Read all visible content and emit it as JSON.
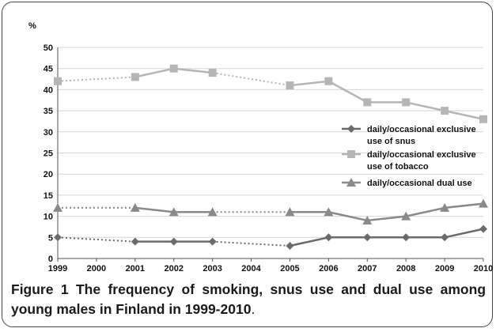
{
  "chart_data": {
    "type": "line",
    "ylabel": "%",
    "ylim": [
      0,
      50
    ],
    "yticks": [
      0,
      5,
      10,
      15,
      20,
      25,
      30,
      35,
      40,
      45,
      50
    ],
    "x_tick_labels": [
      "1999",
      "2000",
      "2001",
      "2002",
      "2003",
      "2004",
      "2005",
      "2006",
      "2007",
      "2008",
      "2009",
      "2010"
    ],
    "grid": "horizontal",
    "legend_position": "right",
    "note": "",
    "series": [
      {
        "name_lines": [
          "daily/occasional exclusive",
          "use of snus"
        ],
        "marker": "diamond",
        "color": "#6b6b6b",
        "x": [
          "1999",
          "2001",
          "2002",
          "2003",
          "2005",
          "2006",
          "2007",
          "2008",
          "2009",
          "2010"
        ],
        "y": [
          5,
          4,
          4,
          4,
          3,
          5,
          5,
          5,
          5,
          7
        ]
      },
      {
        "name_lines": [
          "daily/occasional exclusive",
          "use of tobacco"
        ],
        "marker": "square",
        "color": "#b5b5b5",
        "x": [
          "1999",
          "2001",
          "2002",
          "2003",
          "2005",
          "2006",
          "2007",
          "2008",
          "2009",
          "2010"
        ],
        "y": [
          42,
          43,
          45,
          44,
          41,
          42,
          37,
          37,
          35,
          33
        ]
      },
      {
        "name_lines": [
          "daily/occasional dual use"
        ],
        "marker": "triangle",
        "color": "#8a8a8a",
        "x": [
          "1999",
          "2001",
          "2002",
          "2003",
          "2005",
          "2006",
          "2007",
          "2008",
          "2009",
          "2010"
        ],
        "y": [
          12,
          12,
          11,
          11,
          11,
          11,
          9,
          10,
          12,
          13
        ]
      }
    ]
  },
  "caption": {
    "label": "Figure 1",
    "text": " The frequency of smoking, snus use and dual use among young males in Finland in 1999-2010",
    "end": "."
  }
}
